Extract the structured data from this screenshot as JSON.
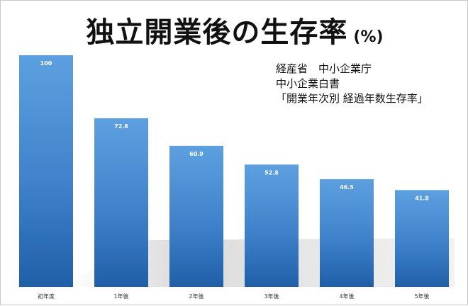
{
  "title": {
    "main": "独立開業後の生存率",
    "unit": "(%)"
  },
  "source": {
    "lines": [
      "経産省　中小企業庁",
      "中小企業白書",
      "「開業年次別 経過年数生存率」"
    ]
  },
  "chart_data": {
    "type": "bar",
    "title": "独立開業後の生存率 (%)",
    "categories": [
      "初年度",
      "1年後",
      "2年後",
      "3年後",
      "4年後",
      "5年後"
    ],
    "values": [
      100,
      72.8,
      60.9,
      52.8,
      46.5,
      41.8
    ],
    "data_labels": [
      "100",
      "72.8",
      "60.9",
      "52.8",
      "46.5",
      "41.8"
    ],
    "xlabel": "",
    "ylabel": "",
    "ylim": [
      0,
      100
    ],
    "grid": false,
    "legend": "none",
    "colors": {
      "bar_light": "#5da0e0",
      "bar_mid": "#3f82cb",
      "bar_dark": "#1f5fa8",
      "shadow": "#d6d6d6"
    }
  }
}
